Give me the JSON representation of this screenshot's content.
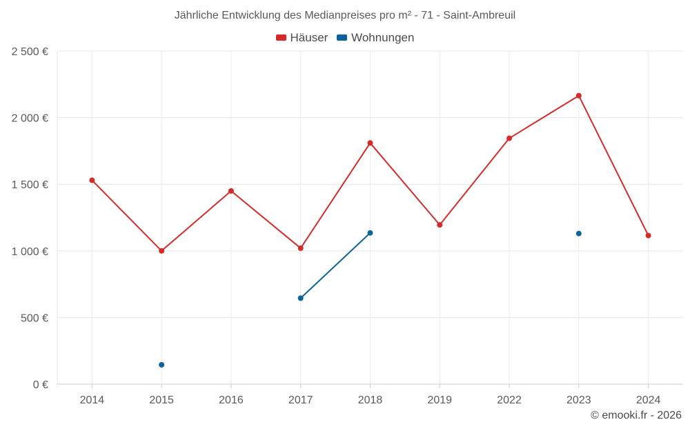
{
  "chart_data": {
    "type": "line",
    "title": "Jährliche Entwicklung des Medianpreises pro m² - 71 - Saint-Ambreuil",
    "categories": [
      "2014",
      "2015",
      "2016",
      "2017",
      "2018",
      "2019",
      "2022",
      "2023",
      "2024"
    ],
    "y_ticks": [
      0,
      500,
      1000,
      1500,
      2000,
      2500
    ],
    "y_tick_labels": [
      "0 €",
      "500 €",
      "1 000 €",
      "1 500 €",
      "2 000 €",
      "2 500 €"
    ],
    "ylim": [
      0,
      2500
    ],
    "xlabel": "",
    "ylabel": "",
    "grid": true,
    "legend_position": "top-center",
    "series": [
      {
        "name": "Häuser",
        "color": "#d42a2a",
        "values": [
          1530,
          1000,
          1450,
          1020,
          1810,
          1195,
          1845,
          2165,
          1115
        ]
      },
      {
        "name": "Wohnungen",
        "color": "#0b6399",
        "values": [
          null,
          145,
          null,
          645,
          1135,
          null,
          null,
          1130,
          null
        ]
      }
    ]
  },
  "credit": "© emooki.fr - 2026"
}
